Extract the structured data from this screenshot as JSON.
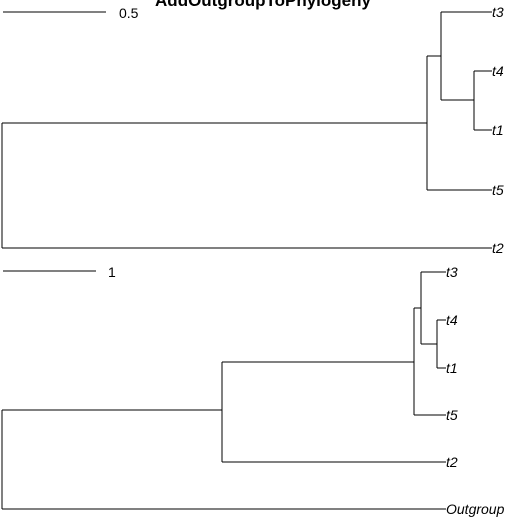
{
  "title": "AddOutgroupToPhylogeny",
  "trees": [
    {
      "scale_bar_label": "0.5",
      "tips": [
        "t3",
        "t4",
        "t1",
        "t5",
        "t2"
      ]
    },
    {
      "scale_bar_label": "1",
      "tips": [
        "t3",
        "t4",
        "t1",
        "t5",
        "t2",
        "Outgroup"
      ]
    }
  ]
}
